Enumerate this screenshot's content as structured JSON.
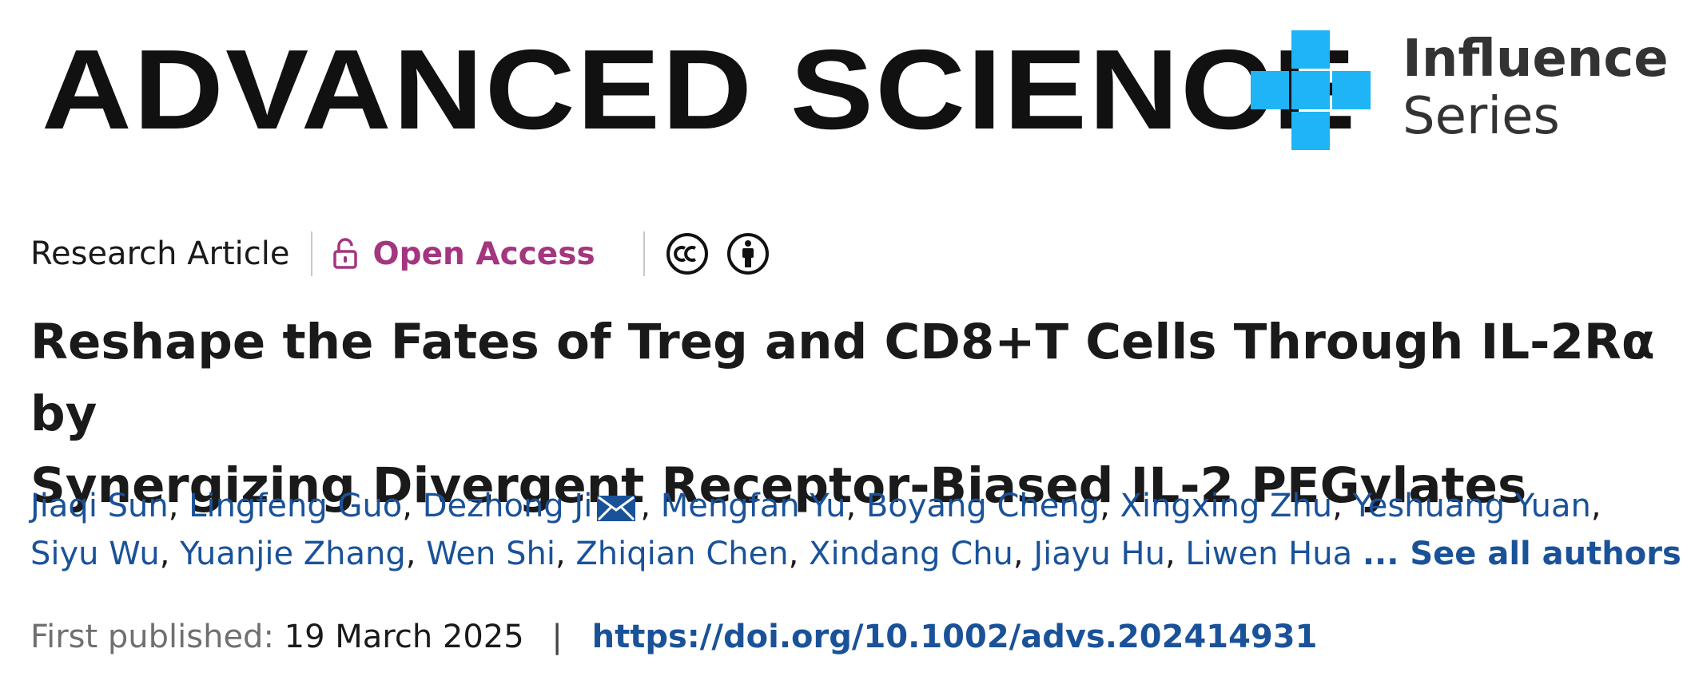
{
  "header": {
    "journal_name": "ADVANCED SCIENCE",
    "series": {
      "word1": "Influence",
      "word2": "Series",
      "brand_color": "#1eb4f5"
    }
  },
  "meta": {
    "article_type": "Research Article",
    "open_access": "Open Access",
    "open_access_color": "#a4357f",
    "license_icons": [
      "creative-commons-icon",
      "attribution-icon"
    ]
  },
  "title": {
    "line1": "Reshape the Fates of Treg and CD8+T Cells Through IL-2Rα by",
    "line2": "Synergizing Divergent Receptor-Biased IL-2 PEGylates"
  },
  "authors": {
    "line1": [
      "Jiaqi Sun",
      "Lingfeng Guo",
      "Dezhong Ji",
      "Mengfan Yu",
      "Boyang Cheng",
      "Xingxing Zhu",
      "Yeshuang Yuan"
    ],
    "line2": [
      "Siyu Wu",
      "Yuanjie Zhang",
      "Wen Shi",
      "Zhiqian Chen",
      "Xindang Chu",
      "Jiayu Hu",
      "Liwen Hua"
    ],
    "corresponding_icon": "mail-icon",
    "see_all": "... See all authors",
    "link_color": "#1a5299"
  },
  "publication": {
    "label": "First published:",
    "date": "19 March 2025",
    "separator": "|",
    "doi": "https://doi.org/10.1002/advs.202414931"
  }
}
